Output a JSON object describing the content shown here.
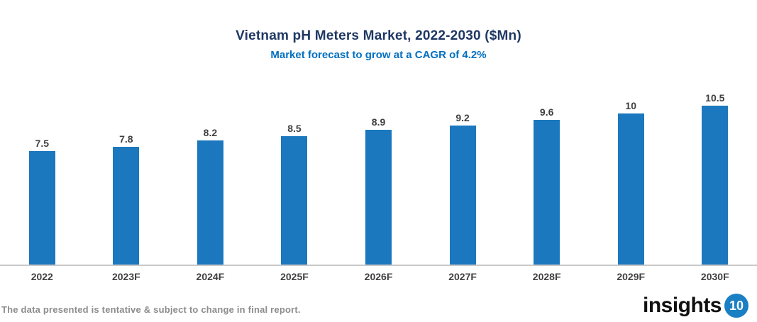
{
  "header": {
    "title": "Vietnam pH Meters Market, 2022-2030 ($Mn)",
    "subtitle": "Market forecast to grow at a CAGR of 4.2%"
  },
  "chart_data": {
    "type": "bar",
    "categories": [
      "2022",
      "2023F",
      "2024F",
      "2025F",
      "2026F",
      "2027F",
      "2028F",
      "2029F",
      "2030F"
    ],
    "values": [
      7.5,
      7.8,
      8.2,
      8.5,
      8.9,
      9.2,
      9.6,
      10,
      10.5
    ],
    "title": "Vietnam pH Meters Market, 2022-2030 ($Mn)",
    "subtitle": "Market forecast to grow at a CAGR of 4.2%",
    "xlabel": "",
    "ylabel": "",
    "ylim": [
      0,
      10.5
    ],
    "grid": false,
    "legend": false,
    "data_labels": true
  },
  "footer": {
    "disclaimer": "The data presented is tentative & subject to change in final report.",
    "logo_text": "insights",
    "logo_badge": "10"
  },
  "colors": {
    "title": "#1F3864",
    "subtitle": "#0070C0",
    "bar": "#1B78BE",
    "label": "#404040",
    "axis_line": "#C9C9C9",
    "disclaimer": "#8C8C8C",
    "logo_badge_bg": "#1B7FC4",
    "logo_text_color": "#111111"
  }
}
